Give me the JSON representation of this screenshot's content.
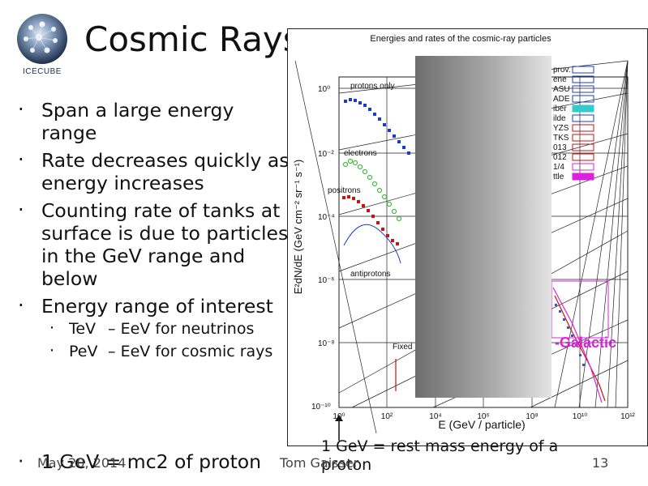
{
  "slide": {
    "title": "Cosmic Rays",
    "logo_text": "ICECUBE",
    "bullets": [
      "Span a large energy range",
      "Rate decreases quickly as energy increases",
      "Counting rate of tanks at surface is due to particles in the GeV range and below",
      "Energy range of interest"
    ],
    "sub_bullets": [
      {
        "lead": "TeV",
        "rest": "– EeV for neutrinos"
      },
      {
        "lead": "PeV",
        "rest": "– EeV for cosmic rays"
      }
    ],
    "last_bullet": "1 GeV = mc2 of proton",
    "caption": "1 GeV = rest mass energy of a proton",
    "footer": {
      "date": "May 20, 2014",
      "author": "Tom Gaisser",
      "page": "13"
    }
  },
  "figure": {
    "title": "Energies and rates of the cosmic-ray particles",
    "xlabel": "E    (GeV / particle)",
    "ylabel": "E²dN/dE   (GeV cm⁻² sr⁻¹ s⁻¹)",
    "x_ticks": [
      "10⁰",
      "10²",
      "10⁴",
      "10⁶",
      "10⁸",
      "10¹⁰",
      "10¹²"
    ],
    "y_ticks": [
      "10⁰",
      "10⁻²",
      "10⁻⁴",
      "10⁻⁶",
      "10⁻⁸",
      "10⁻¹⁰"
    ],
    "labels": {
      "protons": "protons only",
      "electrons": "electrons",
      "positrons": "positrons",
      "antiprotons": "antiprotons",
      "fixed": "Fixed",
      "galactic": "-Galactic"
    },
    "legend_fragments": [
      "prov.",
      "ene",
      "ASU",
      "ADE",
      "iber",
      "ilde",
      "YZS",
      "TKS",
      "013",
      "012",
      "1/4",
      "ttle"
    ],
    "colors": {
      "protons": "#1a3ccc",
      "electrons": "#44bb44",
      "positrons": "#cc1111",
      "magenta": "#dd22dd",
      "cyan": "#33cccc"
    }
  }
}
